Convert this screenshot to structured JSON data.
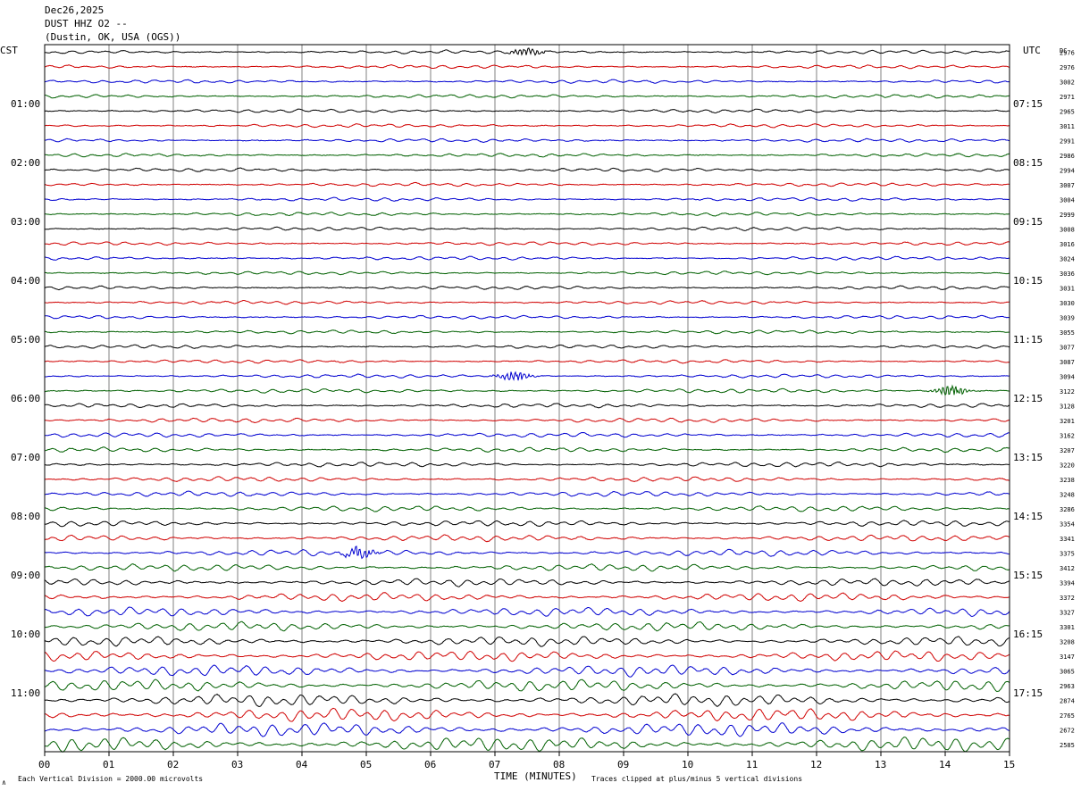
{
  "header": {
    "date": "Dec26,2025",
    "station": "DUST HHZ O2 --",
    "location": "(Dustin, OK, USA  (OGS))"
  },
  "left_zone_label": "CST",
  "right_zone_label": "UTC",
  "dc_label": "DC",
  "footer": {
    "x_axis_title": "TIME (MINUTES)",
    "scale_note": "Each Vertical Division = 2000.00 microvolts",
    "clip_note": "Traces clipped at plus/minus 5 vertical divisions",
    "corner_mark": "∧"
  },
  "colors": {
    "trace_cycle": [
      "#000000",
      "#d00000",
      "#0000d0",
      "#006000"
    ],
    "grid": "#808080",
    "frame": "#000000"
  },
  "chart_data": {
    "type": "helicorder",
    "x_minutes_range": [
      0,
      15
    ],
    "x_tick_labels": [
      "00",
      "01",
      "02",
      "03",
      "04",
      "05",
      "06",
      "07",
      "08",
      "09",
      "10",
      "11",
      "12",
      "13",
      "14",
      "15"
    ],
    "lines_per_hour": 4,
    "hour_labels_left": [
      "01:00",
      "02:00",
      "03:00",
      "04:00",
      "05:00",
      "06:00",
      "07:00",
      "08:00",
      "09:00",
      "10:00",
      "11:00"
    ],
    "hour_labels_right": [
      "07:15",
      "08:15",
      "09:15",
      "10:15",
      "11:15",
      "12:15",
      "13:15",
      "14:15",
      "15:15",
      "16:15",
      "17:15"
    ],
    "dc_offsets": [
      2976,
      2976,
      3002,
      2971,
      2965,
      3011,
      2991,
      2986,
      2994,
      3007,
      3004,
      2999,
      3008,
      3016,
      3024,
      3036,
      3031,
      3030,
      3039,
      3055,
      3077,
      3087,
      3094,
      3122,
      3128,
      3201,
      3162,
      3207,
      3220,
      3238,
      3248,
      3286,
      3354,
      3341,
      3375,
      3412,
      3394,
      3372,
      3327,
      3301,
      3208,
      3147,
      3065,
      2963,
      2874,
      2765,
      2672,
      2585
    ],
    "trace_amplitude": [
      1,
      1,
      1,
      1,
      1,
      1,
      1,
      1,
      1,
      1,
      1,
      1,
      1,
      1,
      1,
      1,
      1,
      1,
      1,
      1,
      1,
      1,
      1,
      1.2,
      1.2,
      1.3,
      1.3,
      1.3,
      1.4,
      1.4,
      1.5,
      1.6,
      1.7,
      1.8,
      1.9,
      2.0,
      2.2,
      2.4,
      2.5,
      2.6,
      2.8,
      3.0,
      3.2,
      3.4,
      3.6,
      3.8,
      4.0,
      4.2
    ],
    "events": [
      {
        "line": 0,
        "minute": 7.5,
        "amplitude": 2.5
      },
      {
        "line": 22,
        "minute": 7.3,
        "amplitude": 3.0
      },
      {
        "line": 23,
        "minute": 14.1,
        "amplitude": 3.5
      },
      {
        "line": 34,
        "minute": 4.9,
        "amplitude": 3.0
      }
    ],
    "grid": true
  }
}
